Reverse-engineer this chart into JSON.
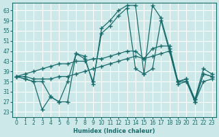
{
  "xlabel": "Humidex (Indice chaleur)",
  "bg_color": "#cce8e8",
  "grid_color": "#ffffff",
  "line_color": "#1a6b6b",
  "ylim": [
    21,
    66
  ],
  "xlim": [
    -0.5,
    23.5
  ],
  "yticks": [
    23,
    27,
    31,
    35,
    39,
    43,
    47,
    51,
    55,
    59,
    63
  ],
  "xticks": [
    0,
    1,
    2,
    3,
    4,
    5,
    6,
    7,
    8,
    9,
    10,
    11,
    12,
    13,
    14,
    15,
    16,
    17,
    18,
    19,
    20,
    21,
    22,
    23
  ],
  "lines": [
    {
      "x": [
        0,
        1,
        2,
        3,
        4,
        5,
        6,
        7,
        8,
        9,
        10,
        11,
        12,
        13,
        14,
        15,
        16,
        17,
        18,
        19,
        20,
        21,
        22,
        23
      ],
      "y": [
        37,
        36,
        35,
        24,
        29,
        27,
        27,
        46,
        45,
        34,
        56,
        59,
        63,
        65,
        65,
        38,
        65,
        60,
        48,
        35,
        36,
        28,
        40,
        38
      ]
    },
    {
      "x": [
        0,
        1,
        2,
        3,
        4,
        5,
        6,
        7,
        8,
        9,
        10,
        11,
        12,
        13,
        14,
        15,
        16,
        17,
        18,
        19,
        20,
        21,
        22,
        23
      ],
      "y": [
        37,
        36,
        35,
        35,
        29,
        27,
        35,
        46,
        44,
        35,
        54,
        57,
        61,
        64,
        40,
        38,
        40,
        59,
        47,
        35,
        35,
        28,
        38,
        37
      ]
    },
    {
      "x": [
        0,
        1,
        2,
        3,
        4,
        5,
        6,
        7,
        8,
        9,
        10,
        11,
        12,
        13,
        14,
        15,
        16,
        17,
        18,
        19,
        20,
        21,
        22,
        23
      ],
      "y": [
        37,
        38,
        39,
        40,
        41,
        42,
        42,
        43,
        43,
        44,
        44,
        45,
        46,
        47,
        47,
        44,
        48,
        49,
        49,
        35,
        36,
        27,
        38,
        37
      ]
    },
    {
      "x": [
        0,
        1,
        2,
        3,
        4,
        5,
        6,
        7,
        8,
        9,
        10,
        11,
        12,
        13,
        14,
        15,
        16,
        17,
        18,
        19,
        20,
        21,
        22,
        23
      ],
      "y": [
        37,
        37,
        36,
        36,
        36,
        37,
        37,
        38,
        39,
        40,
        41,
        42,
        43,
        44,
        45,
        44,
        45,
        46,
        47,
        34,
        35,
        27,
        35,
        36
      ]
    }
  ]
}
